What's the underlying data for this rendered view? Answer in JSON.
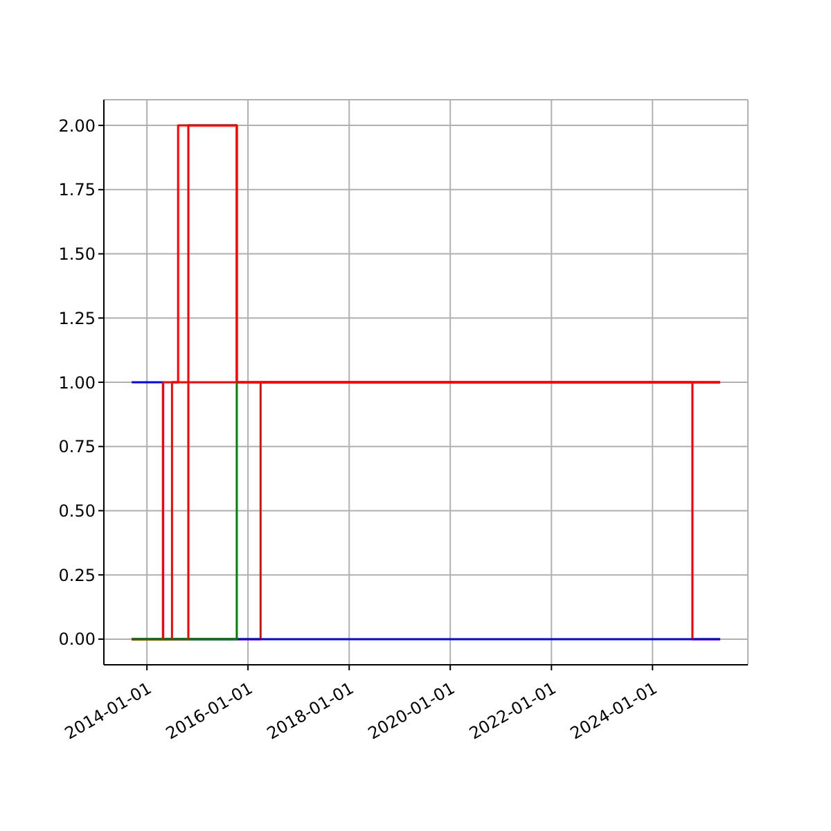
{
  "chart_data": {
    "type": "step",
    "xlim": [
      "2013-02-24",
      "2025-11-20"
    ],
    "xticks": [
      "2014-01-01",
      "2016-01-01",
      "2018-01-01",
      "2020-01-01",
      "2022-01-01",
      "2024-01-01"
    ],
    "ylim": [
      -0.1,
      2.1
    ],
    "yticks": [
      {
        "value": 0,
        "label": "0.00"
      },
      {
        "value": 0.25,
        "label": "0.25"
      },
      {
        "value": 0.5,
        "label": "0.50"
      },
      {
        "value": 0.75,
        "label": "0.75"
      },
      {
        "value": 1,
        "label": "1.00"
      },
      {
        "value": 1.25,
        "label": "1.25"
      },
      {
        "value": 1.5,
        "label": "1.50"
      },
      {
        "value": 1.75,
        "label": "1.75"
      },
      {
        "value": 2,
        "label": "2.00"
      }
    ],
    "grid": true,
    "marker": "none",
    "series": [
      {
        "color": "#ff0000",
        "x": [
          "2013-09-13",
          "2016-04-01",
          "2024-10-15",
          "2025-05-04"
        ],
        "values": [
          0,
          1,
          0,
          0
        ]
      },
      {
        "color": "#0000ff",
        "x": [
          "2013-09-13",
          "2014-04-27",
          "2025-05-04"
        ],
        "values": [
          1,
          0,
          0
        ]
      },
      {
        "color": "#ff0000",
        "x": [
          "2013-09-13",
          "2014-04-27",
          "2014-08-14",
          "2015-10-12",
          "2025-05-04"
        ],
        "values": [
          0,
          1,
          2,
          1,
          1
        ]
      },
      {
        "color": "#ff0000",
        "x": [
          "2013-09-13",
          "2014-07-01",
          "2025-05-04"
        ],
        "values": [
          0,
          1,
          1
        ]
      },
      {
        "color": "#ff0000",
        "x": [
          "2013-09-13",
          "2014-10-27",
          "2015-10-12",
          "2025-05-04"
        ],
        "values": [
          0,
          2,
          1,
          1
        ]
      },
      {
        "color": "#008000",
        "x": [
          "2013-09-13",
          "2015-10-12"
        ],
        "values": [
          0,
          1
        ]
      }
    ]
  }
}
